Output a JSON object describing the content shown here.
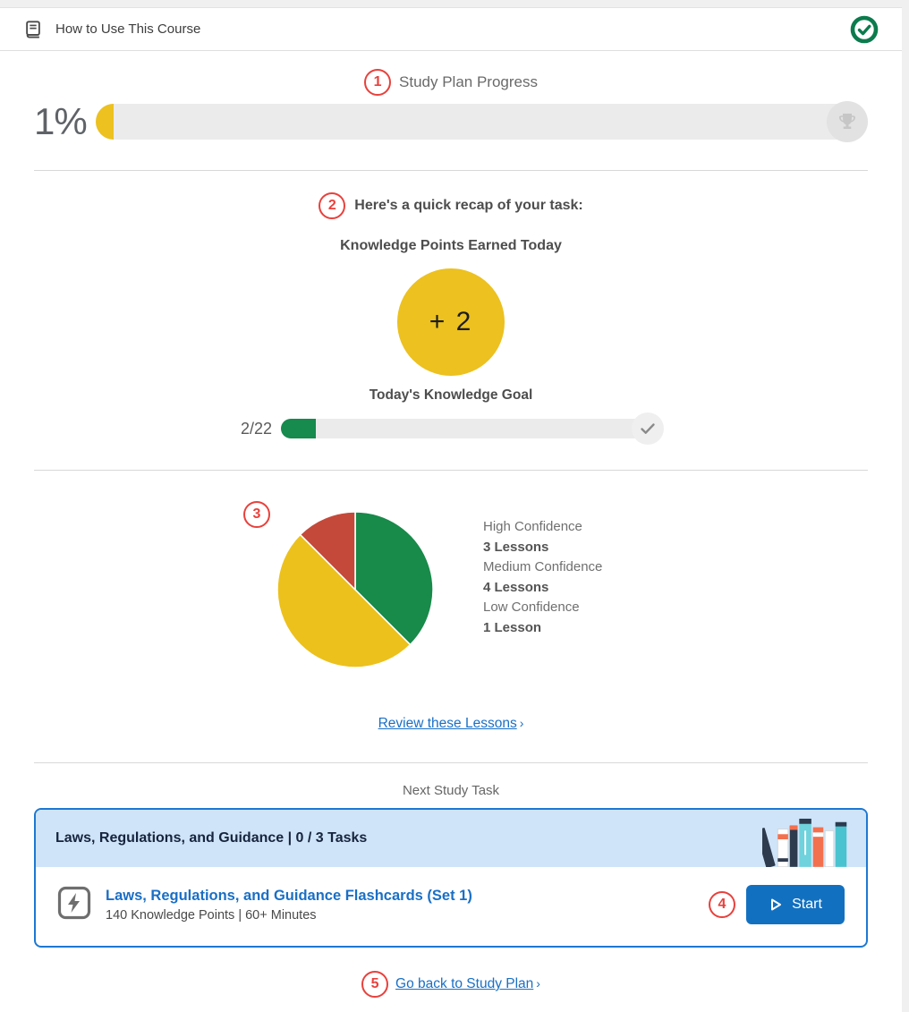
{
  "topbar": {
    "title": "How to Use This Course",
    "icon": "book-icon",
    "status_icon": "check-circle-icon"
  },
  "study_plan": {
    "step": "1",
    "title": "Study Plan Progress",
    "percent_label": "1%",
    "percent_value": 1,
    "end_icon": "trophy-icon"
  },
  "recap": {
    "step": "2",
    "title": "Here's a quick recap of your task:",
    "points_title": "Knowledge Points Earned Today",
    "points_earned_label": "+ 2",
    "goal_title": "Today's Knowledge Goal",
    "goal_label": "2/22",
    "goal_current": 2,
    "goal_total": 22,
    "end_icon": "check-icon"
  },
  "confidence": {
    "step": "3",
    "review_link": "Review these Lessons",
    "chevron": "›"
  },
  "chart_data": {
    "type": "pie",
    "categories": [
      "High Confidence",
      "Medium Confidence",
      "Low Confidence"
    ],
    "values": [
      3,
      4,
      1
    ],
    "value_labels": [
      "3 Lessons",
      "4 Lessons",
      "1 Lesson"
    ],
    "colors": [
      "#188a4a",
      "#ecc11c",
      "#c4493a"
    ],
    "legend_position": "right",
    "start_angle_deg": -90,
    "direction": "clockwise"
  },
  "next_task": {
    "section_label": "Next Study Task",
    "card_title": "Laws, Regulations, and Guidance | 0 / 3 Tasks",
    "task_icon": "lightning-icon",
    "task_title": "Laws, Regulations, and Guidance Flashcards (Set 1)",
    "task_meta": "140 Knowledge Points |  60+ Minutes",
    "step": "4",
    "start_label": "Start",
    "start_icon": "play-icon",
    "illustration": "books-illustration"
  },
  "footer": {
    "step": "5",
    "back_link": "Go back to Study Plan",
    "chevron": "›"
  },
  "colors": {
    "accent_red": "#e8413c",
    "yellow": "#ecc120",
    "green": "#188a4a",
    "blue_link": "#1a6fc5",
    "blue_button": "#1270c0",
    "card_border": "#1d78d2",
    "card_header_bg": "#cfe4f8"
  }
}
